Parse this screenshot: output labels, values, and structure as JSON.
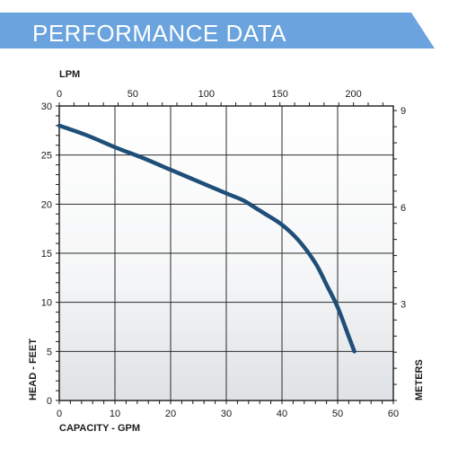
{
  "banner": {
    "title": "PERFORMANCE DATA",
    "color": "#6aa3dd"
  },
  "chart_data": {
    "type": "line",
    "title": "",
    "xlabel": "CAPACITY - GPM",
    "ylabel": "HEAD - FEET",
    "x2label": "LPM",
    "y2label": "METERS",
    "xlim": [
      0,
      60
    ],
    "ylim": [
      0,
      30
    ],
    "x_ticks": [
      0,
      10,
      20,
      30,
      40,
      50,
      60
    ],
    "y_ticks": [
      0,
      5,
      10,
      15,
      20,
      25,
      30
    ],
    "x2_ticks": [
      0,
      50,
      100,
      150,
      200
    ],
    "x2_per_x": 3.785,
    "y2_ticks": [
      3,
      6,
      9
    ],
    "y2_per_y": 0.3048,
    "grid": true,
    "line_color": "#1f4e78",
    "series": [
      {
        "x": [
          0,
          5,
          10,
          15,
          20,
          25,
          30,
          33,
          35,
          37,
          40,
          43,
          46,
          48,
          50,
          52,
          53
        ],
        "values": [
          28.0,
          27.0,
          25.8,
          24.7,
          23.5,
          22.3,
          21.1,
          20.4,
          19.7,
          19.0,
          17.9,
          16.3,
          14.0,
          11.8,
          9.5,
          6.5,
          5.0
        ]
      }
    ]
  }
}
